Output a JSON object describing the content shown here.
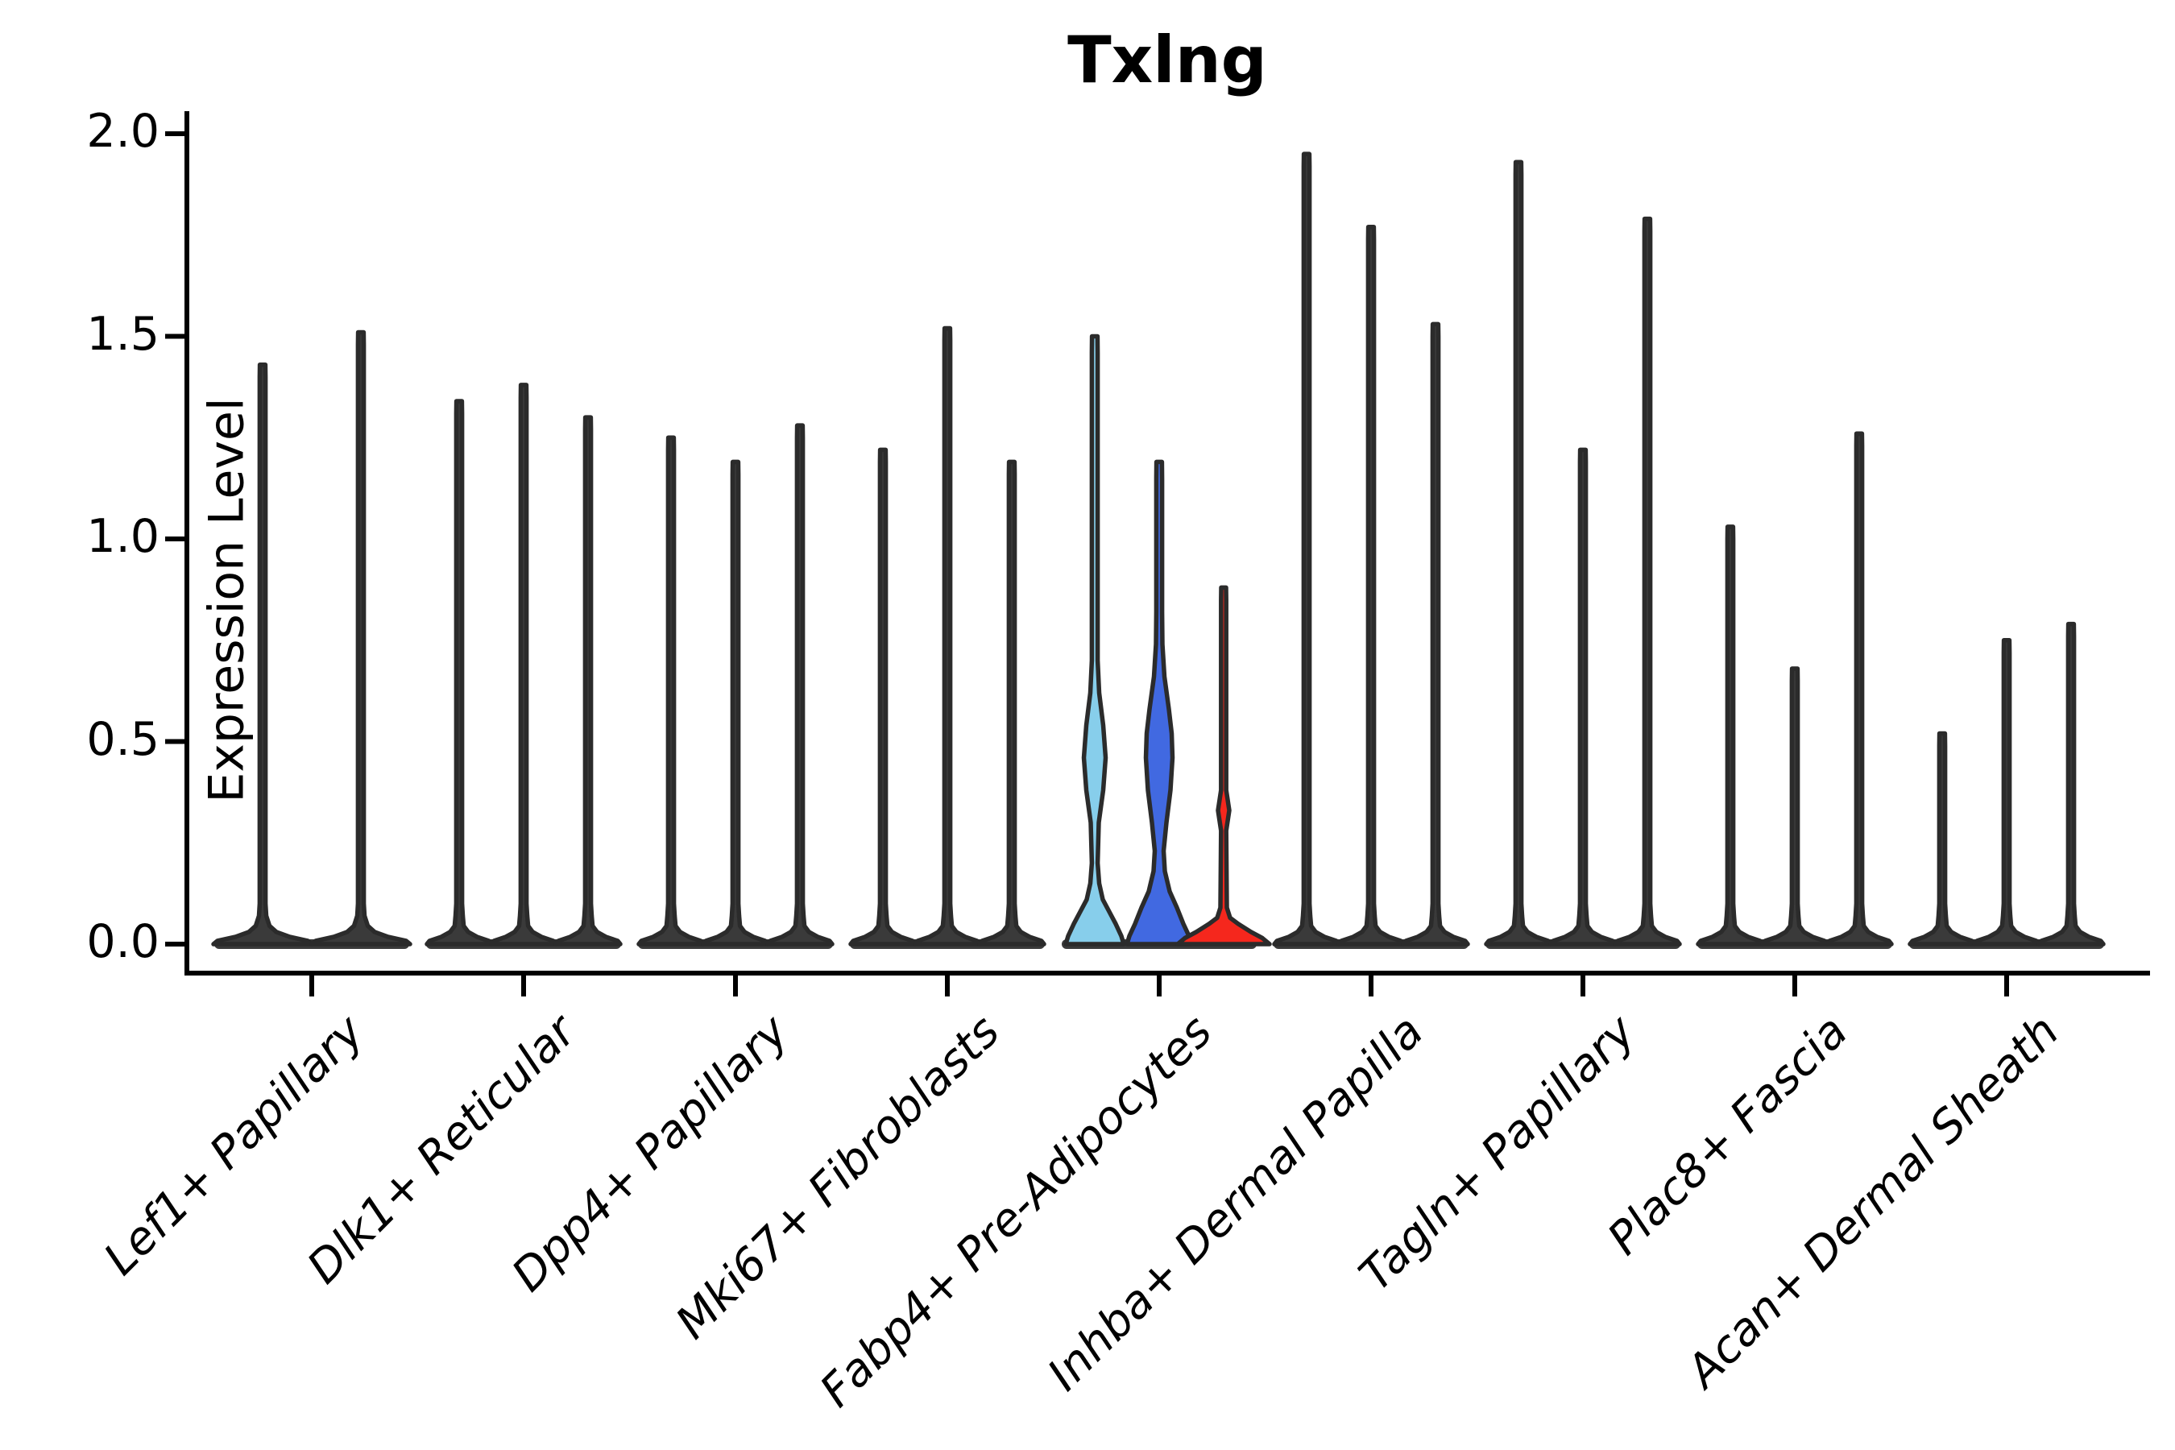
{
  "chart_data": {
    "type": "violin",
    "title": "Txlng",
    "ylabel": "Expression Level",
    "ylim": [
      0,
      2.05
    ],
    "grid": false,
    "legend": "none",
    "yticks": [
      {
        "value": 0.0,
        "label": "0.0"
      },
      {
        "value": 0.5,
        "label": "0.5"
      },
      {
        "value": 1.0,
        "label": "1.0"
      },
      {
        "value": 1.5,
        "label": "1.5"
      },
      {
        "value": 2.0,
        "label": "2.0"
      }
    ],
    "categories": [
      "Lef1+ Papillary",
      "Dlk1+ Reticular",
      "Dpp4+ Papillary",
      "Mki67+ Fibroblasts",
      "Fabp4+ Pre-Adipocytes",
      "Inhba+ Dermal Papilla",
      "Tagln+ Papillary",
      "Plac8+ Fascia",
      "Acan+ Dermal Sheath"
    ],
    "colors": {
      "outline": "#2b2b2b",
      "default_fill": "#3a3a3a",
      "axis": "#000000",
      "split_palette": [
        "#87CEEB",
        "#4169E1",
        "#F5271D"
      ]
    },
    "groups": [
      {
        "category": "Lef1+ Papillary",
        "base_halfwidth": 61,
        "offsets": [
          -61,
          61
        ],
        "violins": [
          {
            "max": 1.43
          },
          {
            "max": 1.51
          }
        ]
      },
      {
        "category": "Dlk1+ Reticular",
        "violins": [
          {
            "max": 1.34
          },
          {
            "max": 1.38
          },
          {
            "max": 1.3
          }
        ]
      },
      {
        "category": "Dpp4+ Papillary",
        "violins": [
          {
            "max": 1.25
          },
          {
            "max": 1.19
          },
          {
            "max": 1.28
          }
        ]
      },
      {
        "category": "Mki67+ Fibroblasts",
        "violins": [
          {
            "max": 1.22
          },
          {
            "max": 1.52
          },
          {
            "max": 1.19
          }
        ]
      },
      {
        "category": "Fabp4+ Pre-Adipocytes",
        "violins": [
          {
            "max": 1.5,
            "fill": "#87CEEB",
            "profile": [
              [
                0,
                36
              ],
              [
                0.02,
                33
              ],
              [
                0.05,
                26
              ],
              [
                0.08,
                18
              ],
              [
                0.11,
                10
              ],
              [
                0.15,
                5.5
              ],
              [
                0.2,
                3.6
              ],
              [
                0.3,
                5
              ],
              [
                0.38,
                10.5
              ],
              [
                0.46,
                13.5
              ],
              [
                0.54,
                10.5
              ],
              [
                0.62,
                5.5
              ],
              [
                0.7,
                3.6
              ],
              [
                1.46,
                3.6
              ],
              [
                1.5,
                3.4
              ]
            ]
          },
          {
            "max": 1.19,
            "fill": "#4169E1",
            "profile": [
              [
                0,
                40
              ],
              [
                0.02,
                37
              ],
              [
                0.05,
                30
              ],
              [
                0.09,
                22
              ],
              [
                0.13,
                13
              ],
              [
                0.18,
                7
              ],
              [
                0.23,
                5.5
              ],
              [
                0.3,
                9
              ],
              [
                0.38,
                14
              ],
              [
                0.46,
                16.5
              ],
              [
                0.52,
                15.5
              ],
              [
                0.58,
                12
              ],
              [
                0.66,
                6.5
              ],
              [
                0.74,
                4
              ],
              [
                0.82,
                3.6
              ],
              [
                1.15,
                3.6
              ],
              [
                1.19,
                3.4
              ]
            ]
          },
          {
            "max": 0.88,
            "fill": "#F5271D",
            "profile": [
              [
                0,
                57
              ],
              [
                0.015,
                48
              ],
              [
                0.03,
                34
              ],
              [
                0.05,
                18
              ],
              [
                0.065,
                8
              ],
              [
                0.09,
                4
              ],
              [
                0.28,
                3.2
              ],
              [
                0.33,
                7
              ],
              [
                0.38,
                3.2
              ],
              [
                0.85,
                3.2
              ],
              [
                0.88,
                3.0
              ]
            ]
          }
        ]
      },
      {
        "category": "Inhba+ Dermal Papilla",
        "violins": [
          {
            "max": 1.95
          },
          {
            "max": 1.77
          },
          {
            "max": 1.53
          }
        ]
      },
      {
        "category": "Tagln+ Papillary",
        "violins": [
          {
            "max": 1.93
          },
          {
            "max": 1.22
          },
          {
            "max": 1.79
          }
        ]
      },
      {
        "category": "Plac8+ Fascia",
        "violins": [
          {
            "max": 1.03
          },
          {
            "max": 0.68
          },
          {
            "max": 1.26
          }
        ]
      },
      {
        "category": "Acan+ Dermal Sheath",
        "violins": [
          {
            "max": 0.52
          },
          {
            "max": 0.75
          },
          {
            "max": 0.79
          }
        ]
      }
    ]
  }
}
